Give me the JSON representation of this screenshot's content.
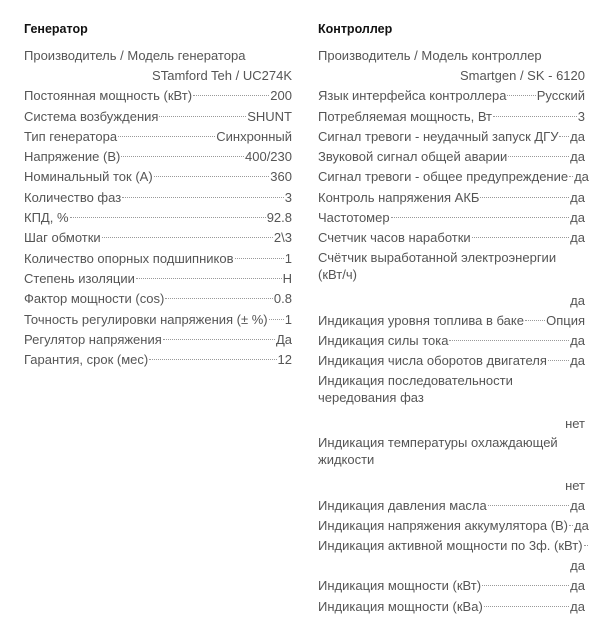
{
  "generator": {
    "title": "Генератор",
    "rows": [
      {
        "label": "Производитель / Модель генератора",
        "value": "STamford Teh / UC274K"
      },
      {
        "label": "Постоянная мощность (кВт)",
        "value": "200"
      },
      {
        "label": "Система возбуждения",
        "value": "SHUNT"
      },
      {
        "label": "Тип генератора",
        "value": "Синхронный"
      },
      {
        "label": "Напряжение (В)",
        "value": "400/230"
      },
      {
        "label": "Номинальный ток (А)",
        "value": "360"
      },
      {
        "label": "Количество фаз",
        "value": "3"
      },
      {
        "label": "КПД, %",
        "value": "92.8"
      },
      {
        "label": "Шаг обмотки",
        "value": "2\\3"
      },
      {
        "label": "Количество опорных подшипников",
        "value": "1"
      },
      {
        "label": "Степень изоляции",
        "value": "H"
      },
      {
        "label": "Фактор мощности (cos)",
        "value": "0.8"
      },
      {
        "label": "Точность регулировки напряжения (± %)",
        "value": "1"
      },
      {
        "label": "Регулятор напряжения",
        "value": "Да"
      },
      {
        "label": "Гарантия, срок (мес)",
        "value": "12"
      }
    ]
  },
  "controller": {
    "title": "Контроллер",
    "rows": [
      {
        "label": "Производитель / Модель контроллер",
        "value": "Smartgen / SK - 6120"
      },
      {
        "label": "Язык интерфейса контроллера",
        "value": "Русский"
      },
      {
        "label": "Потребляемая мощность, Вт",
        "value": "3"
      },
      {
        "label": "Сигнал тревоги - неудачный запуск ДГУ",
        "value": "да"
      },
      {
        "label": "Звуковой сигнал общей аварии",
        "value": "да"
      },
      {
        "label": "Сигнал тревоги - общее предупреждение",
        "value": "да"
      },
      {
        "label": "Контроль напряжения АКБ",
        "value": "да"
      },
      {
        "label": "Частотомер",
        "value": "да"
      },
      {
        "label": "Счетчик часов наработки",
        "value": "да"
      },
      {
        "label": "Счётчик выработанной электроэнергии (кВт/ч)",
        "value": "да"
      },
      {
        "label": "Индикация уровня топлива в баке",
        "value": "Опция"
      },
      {
        "label": "Индикация силы тока",
        "value": "да"
      },
      {
        "label": "Индикация числа оборотов двигателя",
        "value": "да"
      },
      {
        "label": "Индикация последовательности чередования фаз",
        "value": "нет"
      },
      {
        "label": "Индикация температуры охлаждающей жидкости",
        "value": "нет"
      },
      {
        "label": "Индикация давления масла",
        "value": "да"
      },
      {
        "label": "Индикация напряжения аккумулятора (В)",
        "value": "да"
      },
      {
        "label": "Индикация активной мощности по 3ф. (кВт)",
        "value": "да"
      },
      {
        "label": "Индикация мощности (кВт)",
        "value": "да"
      },
      {
        "label": "Индикация мощности (кВа)",
        "value": "да"
      }
    ]
  }
}
